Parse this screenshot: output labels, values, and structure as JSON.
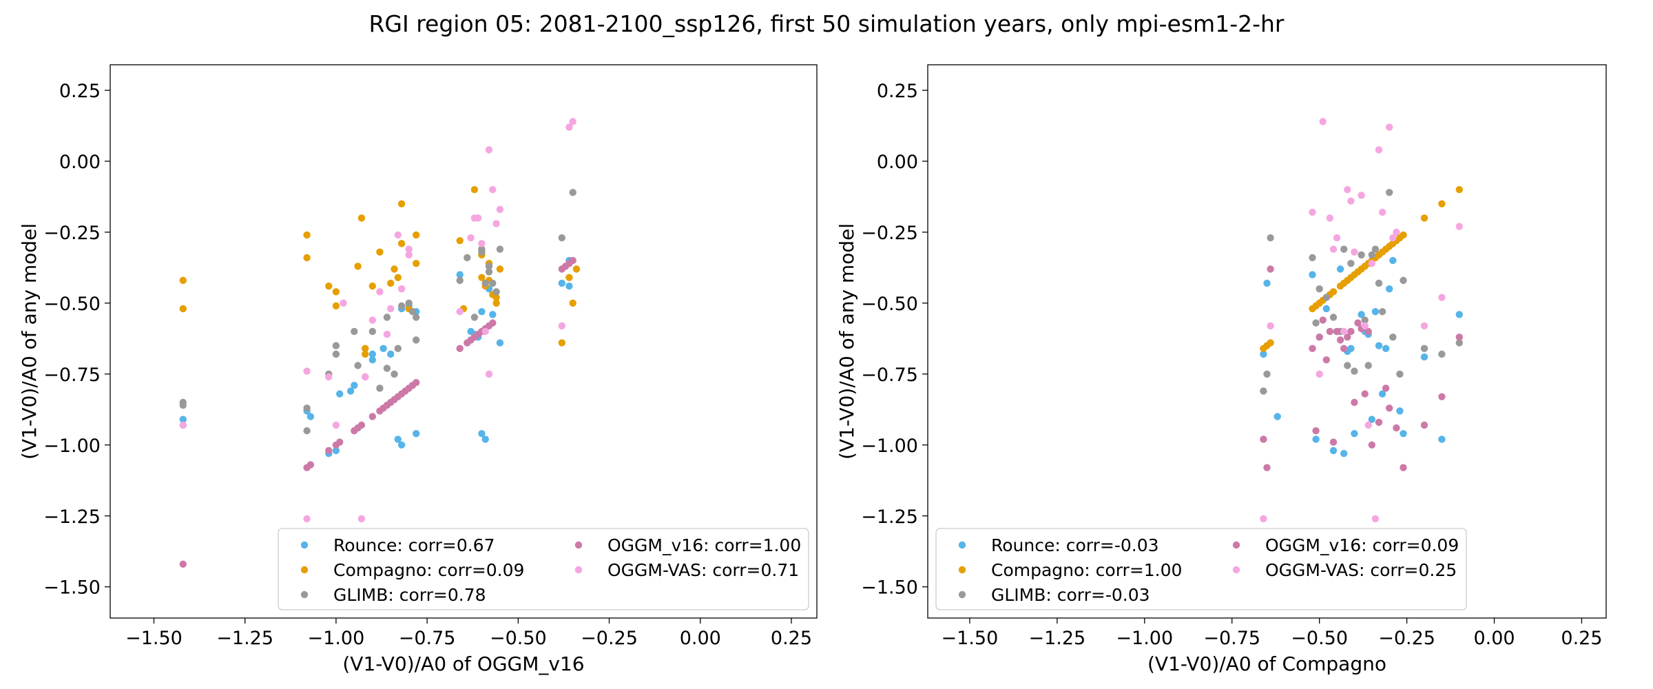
{
  "suptitle": "RGI region 05: 2081-2100_ssp126, first 50 simulation years, only mpi-esm1-2-hr",
  "colors": {
    "Rounce": "#56b4e9",
    "Compagno": "#e69f00",
    "GLIMB": "#999999",
    "OGGM_v16": "#cc79a7",
    "OGGM-VAS": "#f5a6e0"
  },
  "chart_data": [
    {
      "type": "scatter",
      "title": "",
      "xlabel": "(V1-V0)/A0 of OGGM_v16",
      "ylabel": "(V1-V0)/A0 of any model",
      "xlim": [
        -1.62,
        0.32
      ],
      "ylim": [
        -1.61,
        0.34
      ],
      "xticks": [
        -1.5,
        -1.25,
        -1.0,
        -0.75,
        -0.5,
        -0.25,
        0.0,
        0.25
      ],
      "xtick_labels": [
        "−1.50",
        "−1.25",
        "−1.00",
        "−0.75",
        "−0.50",
        "−0.25",
        "0.00",
        "0.25"
      ],
      "yticks": [
        -1.5,
        -1.25,
        -1.0,
        -0.75,
        -0.5,
        -0.25,
        0.0,
        0.25
      ],
      "ytick_labels": [
        "−1.50",
        "−1.25",
        "−1.00",
        "−0.75",
        "−0.50",
        "−0.25",
        "0.00",
        "0.25"
      ],
      "grid": false,
      "legend": {
        "position": "lower-right",
        "columns": 2
      },
      "series": [
        {
          "name": "Rounce",
          "label": "Rounce: corr=0.67",
          "x": [
            -1.42,
            -1.42,
            -1.08,
            -1.07,
            -1.02,
            -1.0,
            -0.99,
            -0.96,
            -0.95,
            -0.9,
            -0.9,
            -0.87,
            -0.85,
            -0.83,
            -0.82,
            -0.82,
            -0.8,
            -0.78,
            -0.78,
            -0.66,
            -0.63,
            -0.62,
            -0.61,
            -0.6,
            -0.6,
            -0.59,
            -0.58,
            -0.57,
            -0.55,
            -0.38,
            -0.36,
            -0.36
          ],
          "y": [
            -0.91,
            -0.93,
            -0.88,
            -0.9,
            -1.03,
            -1.02,
            -0.82,
            -0.81,
            -0.79,
            -0.7,
            -0.68,
            -0.66,
            -0.68,
            -0.98,
            -1.0,
            -0.52,
            -0.51,
            -0.53,
            -0.96,
            -0.4,
            -0.6,
            -0.61,
            -0.62,
            -0.96,
            -0.53,
            -0.98,
            -0.45,
            -0.54,
            -0.64,
            -0.43,
            -0.44,
            -0.35
          ]
        },
        {
          "name": "Compagno",
          "label": "Compagno: corr=0.09",
          "x": [
            -1.42,
            -1.42,
            -1.08,
            -1.08,
            -1.02,
            -1.0,
            -1.0,
            -0.94,
            -0.93,
            -0.92,
            -0.92,
            -0.9,
            -0.88,
            -0.85,
            -0.84,
            -0.83,
            -0.82,
            -0.82,
            -0.8,
            -0.78,
            -0.78,
            -0.66,
            -0.65,
            -0.62,
            -0.6,
            -0.6,
            -0.59,
            -0.58,
            -0.58,
            -0.57,
            -0.56,
            -0.56,
            -0.55,
            -0.38,
            -0.36,
            -0.35,
            -0.34
          ],
          "y": [
            -0.42,
            -0.52,
            -0.26,
            -0.34,
            -0.44,
            -0.46,
            -0.51,
            -0.37,
            -0.2,
            -0.66,
            -0.68,
            -0.44,
            -0.32,
            -0.43,
            -0.38,
            -0.41,
            -0.15,
            -0.29,
            -0.52,
            -0.26,
            -0.36,
            -0.28,
            -0.52,
            -0.1,
            -0.33,
            -0.41,
            -0.44,
            -0.42,
            -0.36,
            -0.47,
            -0.48,
            -0.5,
            -0.38,
            -0.64,
            -0.41,
            -0.5,
            -0.38
          ]
        },
        {
          "name": "GLIMB",
          "label": "GLIMB: corr=0.78",
          "x": [
            -1.42,
            -1.42,
            -1.08,
            -1.08,
            -1.02,
            -1.0,
            -1.0,
            -0.95,
            -0.94,
            -0.92,
            -0.9,
            -0.88,
            -0.86,
            -0.86,
            -0.84,
            -0.83,
            -0.82,
            -0.8,
            -0.79,
            -0.78,
            -0.78,
            -0.66,
            -0.64,
            -0.62,
            -0.6,
            -0.6,
            -0.59,
            -0.58,
            -0.58,
            -0.57,
            -0.56,
            -0.55,
            -0.38,
            -0.36,
            -0.35
          ],
          "y": [
            -0.85,
            -0.86,
            -0.87,
            -0.95,
            -0.75,
            -0.65,
            -0.68,
            -0.6,
            -0.72,
            -0.76,
            -0.6,
            -0.8,
            -0.55,
            -0.73,
            -0.75,
            -0.66,
            -0.51,
            -0.5,
            -0.53,
            -0.55,
            -0.63,
            -0.42,
            -0.34,
            -0.55,
            -0.31,
            -0.32,
            -0.43,
            -0.37,
            -0.39,
            -0.43,
            -0.46,
            -0.31,
            -0.27,
            -0.36,
            -0.11
          ]
        },
        {
          "name": "OGGM_v16",
          "label": "OGGM_v16: corr=1.00",
          "x": [
            -1.42,
            -1.08,
            -1.07,
            -1.02,
            -1.0,
            -0.99,
            -0.95,
            -0.94,
            -0.93,
            -0.9,
            -0.88,
            -0.87,
            -0.86,
            -0.85,
            -0.84,
            -0.83,
            -0.82,
            -0.81,
            -0.8,
            -0.79,
            -0.78,
            -0.66,
            -0.64,
            -0.63,
            -0.62,
            -0.61,
            -0.6,
            -0.59,
            -0.58,
            -0.57,
            -0.38,
            -0.37,
            -0.36,
            -0.35
          ],
          "y": [
            -1.42,
            -1.08,
            -1.07,
            -1.02,
            -1.0,
            -0.99,
            -0.95,
            -0.94,
            -0.93,
            -0.9,
            -0.88,
            -0.87,
            -0.86,
            -0.85,
            -0.84,
            -0.83,
            -0.82,
            -0.81,
            -0.8,
            -0.79,
            -0.78,
            -0.66,
            -0.64,
            -0.63,
            -0.62,
            -0.61,
            -0.6,
            -0.59,
            -0.58,
            -0.57,
            -0.38,
            -0.37,
            -0.36,
            -0.35
          ]
        },
        {
          "name": "OGGM-VAS",
          "label": "OGGM-VAS: corr=0.71",
          "x": [
            -1.42,
            -1.08,
            -1.08,
            -1.02,
            -1.0,
            -0.98,
            -0.93,
            -0.92,
            -0.9,
            -0.88,
            -0.86,
            -0.85,
            -0.83,
            -0.82,
            -0.8,
            -0.8,
            -0.66,
            -0.63,
            -0.62,
            -0.61,
            -0.6,
            -0.59,
            -0.58,
            -0.58,
            -0.57,
            -0.56,
            -0.55,
            -0.38,
            -0.36,
            -0.35
          ],
          "y": [
            -0.93,
            -0.74,
            -1.26,
            -0.76,
            -0.93,
            -0.5,
            -1.26,
            -0.76,
            -0.56,
            -0.46,
            -0.61,
            -0.52,
            -0.26,
            -0.45,
            -0.31,
            -0.33,
            -0.53,
            -0.27,
            -0.2,
            -0.2,
            -0.29,
            -0.6,
            -0.75,
            0.04,
            -0.1,
            -0.22,
            -0.17,
            -0.58,
            0.12,
            0.14
          ]
        }
      ]
    },
    {
      "type": "scatter",
      "title": "",
      "xlabel": "(V1-V0)/A0 of Compagno",
      "ylabel": "(V1-V0)/A0 of any model",
      "xlim": [
        -1.62,
        0.32
      ],
      "ylim": [
        -1.61,
        0.34
      ],
      "xticks": [
        -1.5,
        -1.25,
        -1.0,
        -0.75,
        -0.5,
        -0.25,
        0.0,
        0.25
      ],
      "xtick_labels": [
        "−1.50",
        "−1.25",
        "−1.00",
        "−0.75",
        "−0.50",
        "−0.25",
        "0.00",
        "0.25"
      ],
      "yticks": [
        -1.5,
        -1.25,
        -1.0,
        -0.75,
        -0.5,
        -0.25,
        0.0,
        0.25
      ],
      "ytick_labels": [
        "−1.50",
        "−1.25",
        "−1.00",
        "−0.75",
        "−0.50",
        "−0.25",
        "0.00",
        "0.25"
      ],
      "grid": false,
      "legend": {
        "position": "lower-left",
        "columns": 2
      },
      "series": [
        {
          "name": "Rounce",
          "label": "Rounce: corr=-0.03",
          "x": [
            -0.66,
            -0.65,
            -0.62,
            -0.52,
            -0.51,
            -0.5,
            -0.48,
            -0.46,
            -0.45,
            -0.44,
            -0.43,
            -0.42,
            -0.41,
            -0.4,
            -0.38,
            -0.37,
            -0.36,
            -0.35,
            -0.34,
            -0.33,
            -0.32,
            -0.31,
            -0.3,
            -0.29,
            -0.27,
            -0.26,
            -0.2,
            -0.15,
            -0.1
          ],
          "y": [
            -0.68,
            -0.43,
            -0.9,
            -0.4,
            -0.98,
            -0.62,
            -0.52,
            -1.02,
            -0.6,
            -0.38,
            -1.03,
            -0.67,
            -0.66,
            -0.96,
            -0.54,
            -0.6,
            -0.61,
            -0.91,
            -0.53,
            -0.65,
            -0.82,
            -0.66,
            -0.45,
            -0.35,
            -0.88,
            -0.96,
            -0.69,
            -0.98,
            -0.54
          ]
        },
        {
          "name": "Compagno",
          "label": "Compagno: corr=1.00",
          "x": [
            -0.66,
            -0.65,
            -0.64,
            -0.52,
            -0.51,
            -0.5,
            -0.49,
            -0.48,
            -0.47,
            -0.46,
            -0.44,
            -0.43,
            -0.42,
            -0.41,
            -0.4,
            -0.39,
            -0.38,
            -0.37,
            -0.36,
            -0.35,
            -0.34,
            -0.33,
            -0.32,
            -0.31,
            -0.3,
            -0.29,
            -0.28,
            -0.27,
            -0.26,
            -0.2,
            -0.15,
            -0.1
          ],
          "y": [
            -0.66,
            -0.65,
            -0.64,
            -0.52,
            -0.51,
            -0.5,
            -0.49,
            -0.48,
            -0.47,
            -0.46,
            -0.44,
            -0.43,
            -0.42,
            -0.41,
            -0.4,
            -0.39,
            -0.38,
            -0.37,
            -0.36,
            -0.35,
            -0.34,
            -0.33,
            -0.32,
            -0.31,
            -0.3,
            -0.29,
            -0.28,
            -0.27,
            -0.26,
            -0.2,
            -0.15,
            -0.1
          ]
        },
        {
          "name": "GLIMB",
          "label": "GLIMB: corr=-0.03",
          "x": [
            -0.66,
            -0.65,
            -0.64,
            -0.52,
            -0.51,
            -0.5,
            -0.48,
            -0.46,
            -0.44,
            -0.43,
            -0.42,
            -0.41,
            -0.4,
            -0.38,
            -0.37,
            -0.36,
            -0.35,
            -0.34,
            -0.33,
            -0.32,
            -0.3,
            -0.29,
            -0.27,
            -0.26,
            -0.2,
            -0.15,
            -0.1
          ],
          "y": [
            -0.81,
            -0.75,
            -0.27,
            -0.34,
            -0.57,
            -0.45,
            -0.48,
            -0.55,
            -0.6,
            -0.31,
            -0.72,
            -0.36,
            -0.74,
            -0.33,
            -0.56,
            -0.72,
            -0.33,
            -0.31,
            -0.43,
            -0.53,
            -0.11,
            -0.62,
            -0.75,
            -0.42,
            -0.66,
            -0.68,
            -0.64
          ]
        },
        {
          "name": "OGGM_v16",
          "label": "OGGM_v16: corr=0.09",
          "x": [
            -0.66,
            -0.65,
            -0.64,
            -0.52,
            -0.51,
            -0.5,
            -0.49,
            -0.48,
            -0.47,
            -0.46,
            -0.45,
            -0.44,
            -0.43,
            -0.42,
            -0.41,
            -0.4,
            -0.39,
            -0.38,
            -0.37,
            -0.36,
            -0.35,
            -0.33,
            -0.31,
            -0.3,
            -0.28,
            -0.26,
            -0.2,
            -0.15,
            -0.1
          ],
          "y": [
            -0.98,
            -1.08,
            -0.38,
            -0.66,
            -0.95,
            -0.62,
            -0.56,
            -0.7,
            -0.6,
            -0.99,
            -0.6,
            -0.63,
            -0.66,
            -0.62,
            -0.6,
            -0.85,
            -0.57,
            -0.59,
            -0.82,
            -0.6,
            -1.0,
            -0.92,
            -0.8,
            -0.87,
            -0.94,
            -1.08,
            -0.93,
            -0.83,
            -0.62
          ]
        },
        {
          "name": "OGGM-VAS",
          "label": "OGGM-VAS: corr=0.25",
          "x": [
            -0.66,
            -0.64,
            -0.52,
            -0.5,
            -0.49,
            -0.47,
            -0.46,
            -0.45,
            -0.43,
            -0.42,
            -0.41,
            -0.4,
            -0.38,
            -0.37,
            -0.36,
            -0.35,
            -0.34,
            -0.33,
            -0.32,
            -0.3,
            -0.29,
            -0.28,
            -0.2,
            -0.15,
            -0.1
          ],
          "y": [
            -1.26,
            -0.58,
            -0.18,
            -0.75,
            0.14,
            -0.2,
            -0.31,
            -0.27,
            -0.6,
            -0.1,
            -0.14,
            -0.32,
            -0.12,
            -0.58,
            -0.93,
            -0.36,
            -1.26,
            0.04,
            -0.18,
            0.12,
            -0.27,
            -0.25,
            -0.58,
            -0.48,
            -0.23
          ]
        }
      ]
    }
  ]
}
